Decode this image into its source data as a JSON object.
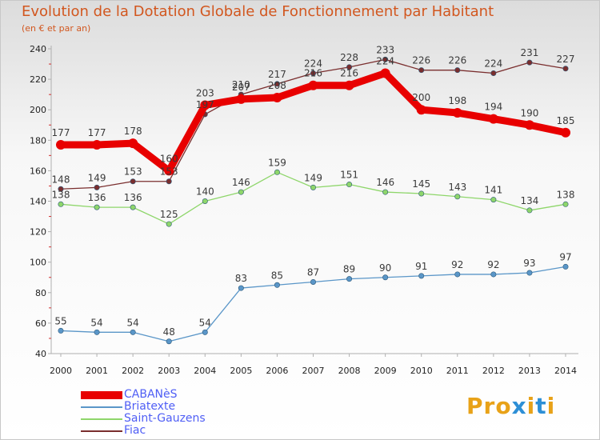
{
  "header": {
    "title": "Evolution de la Dotation Globale de Fonctionnement par Habitant",
    "subtitle": "(en € et par an)"
  },
  "logo": {
    "text": "Proxiti",
    "colors": [
      "#e8a218",
      "#e8a218",
      "#e8a218",
      "#2d8fd6",
      "#e8a218",
      "#2d8fd6",
      "#e8a218"
    ]
  },
  "chart_data": {
    "type": "line",
    "x": [
      2000,
      2001,
      2002,
      2003,
      2004,
      2005,
      2006,
      2007,
      2008,
      2009,
      2010,
      2011,
      2012,
      2013,
      2014
    ],
    "ylim": [
      40,
      240
    ],
    "yticks": [
      40,
      60,
      80,
      100,
      120,
      140,
      160,
      180,
      200,
      220,
      240
    ],
    "grid": false,
    "legend_position": "bottom-left",
    "series": [
      {
        "name": "CABANèS",
        "color": "#e80000",
        "values": [
          177,
          177,
          178,
          160,
          203,
          207,
          208,
          216,
          216,
          224,
          200,
          198,
          194,
          190,
          185
        ],
        "labels": [
          "177",
          "177",
          "178",
          "160",
          "203",
          "207",
          "208",
          "216",
          "216",
          "224",
          "200",
          "198",
          "194",
          "190",
          "185"
        ]
      },
      {
        "name": "Briatexte",
        "color": "#5a96c8",
        "values": [
          55,
          54,
          54,
          48,
          54,
          83,
          85,
          87,
          89,
          90,
          91,
          92,
          92,
          93,
          97
        ],
        "labels": [
          "55",
          "54",
          "54",
          "48",
          "54",
          "83",
          "85",
          "87",
          "89",
          "90",
          "91",
          "92",
          "92",
          "93",
          "97"
        ]
      },
      {
        "name": "Saint-Gauzens",
        "color": "#8ed66a",
        "values": [
          138,
          136,
          136,
          125,
          140,
          146,
          159,
          149,
          151,
          146,
          145,
          143,
          141,
          134,
          138
        ],
        "labels": [
          "138",
          "136",
          "136",
          "125",
          "140",
          "146",
          "159",
          "149",
          "151",
          "146",
          "145",
          "143",
          "141",
          "134",
          "138"
        ]
      },
      {
        "name": "Fiac",
        "color": "#7a2e2e",
        "values": [
          148,
          149,
          153,
          153,
          197,
          210,
          217,
          224,
          228,
          233,
          226,
          226,
          224,
          231,
          227
        ],
        "labels": [
          "148",
          "149",
          "153",
          "153",
          "197",
          "210",
          "217",
          "224",
          "228",
          "233",
          "226",
          "226",
          "224",
          "231",
          "227"
        ]
      }
    ]
  }
}
